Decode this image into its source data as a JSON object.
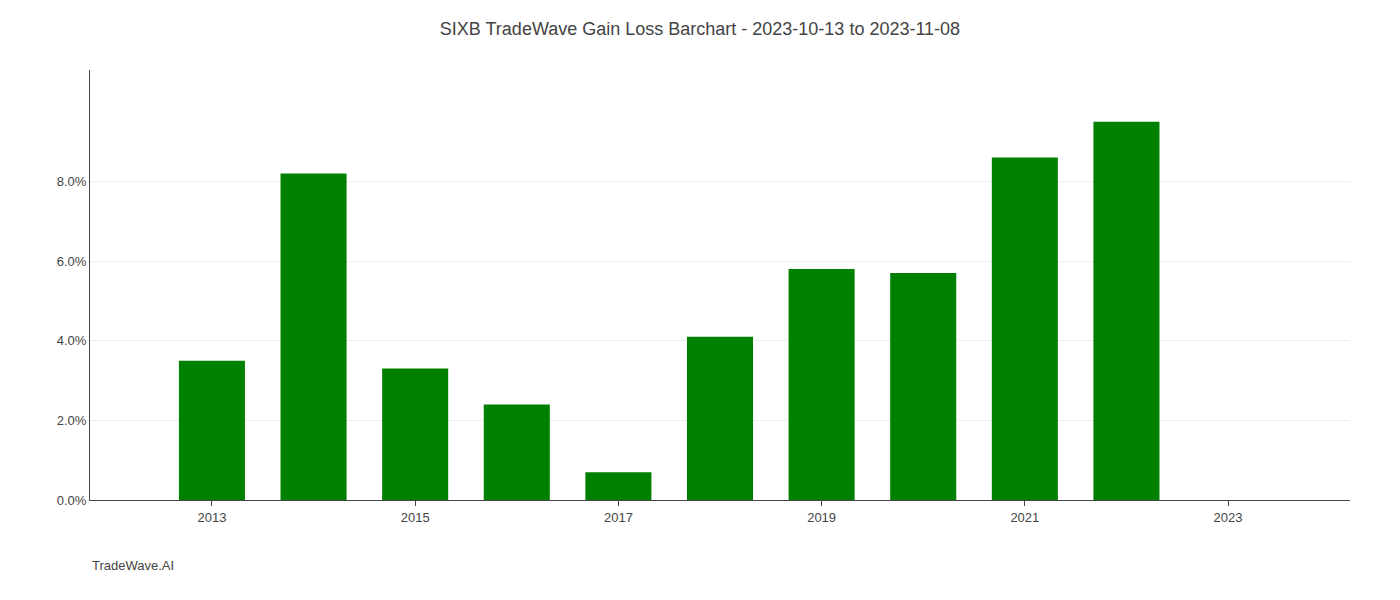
{
  "chart_data": {
    "type": "bar",
    "title": "SIXB TradeWave Gain Loss Barchart - 2023-10-13 to 2023-11-08",
    "annotations": [
      "TradeWave.AI"
    ],
    "x": [
      2013,
      2014,
      2015,
      2016,
      2017,
      2018,
      2019,
      2020,
      2021,
      2022
    ],
    "values": [
      0.035,
      0.082,
      0.033,
      0.024,
      0.007,
      0.041,
      0.058,
      0.057,
      0.086,
      0.095
    ],
    "color": "#008000",
    "xlim": [
      2011.8,
      2024.2
    ],
    "xticks": [
      2013,
      2015,
      2017,
      2019,
      2021,
      2023
    ],
    "ylim": [
      0,
      0.108
    ],
    "yticks": [
      {
        "value": 0.0,
        "label": "0.0%"
      },
      {
        "value": 0.02,
        "label": "2.0%"
      },
      {
        "value": 0.04,
        "label": "4.0%"
      },
      {
        "value": 0.06,
        "label": "6.0%"
      },
      {
        "value": 0.08,
        "label": "8.0%"
      }
    ],
    "grid": true
  }
}
